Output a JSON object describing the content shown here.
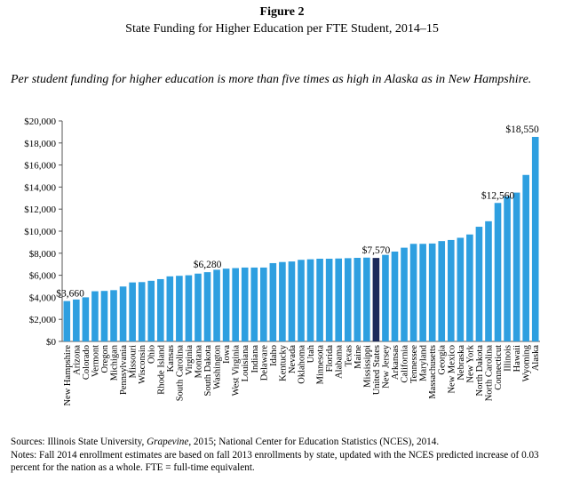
{
  "figure": {
    "label": "Figure 2",
    "title": "State Funding for Higher Education per FTE Student, 2014–15",
    "subtitle": "Per student funding for higher education is more than five times as high in Alaska as in New Hampshire."
  },
  "footer": {
    "sources_prefix": "Sources: Illinois State University, ",
    "sources_italic": "Grapevine",
    "sources_suffix": ", 2015; National Center for Education Statistics (NCES), 2014.",
    "notes": "Notes: Fall 2014 enrollment estimates are based on fall 2013 enrollments by state, updated with the NCES predicted increase of 0.03 percent for the nation as a whole. FTE = full-time equivalent."
  },
  "chart_data": {
    "type": "bar",
    "title": "State Funding for Higher Education per FTE Student, 2014–15",
    "xlabel": "",
    "ylabel": "",
    "ylim": [
      0,
      20000
    ],
    "yticks": [
      "$0",
      "$2,000",
      "$4,000",
      "$6,000",
      "$8,000",
      "$10,000",
      "$12,000",
      "$14,000",
      "$16,000",
      "$18,000",
      "$20,000"
    ],
    "grid": false,
    "colors": {
      "bar": "#2e9fe0",
      "highlight": "#1a2a5c"
    },
    "highlight_category": "United States",
    "categories": [
      "New Hampshire",
      "Arizona",
      "Colorado",
      "Vermont",
      "Oregon",
      "Michigan",
      "Pennsylvania",
      "Missouri",
      "Wisconsin",
      "Ohio",
      "Rhode Island",
      "Kansas",
      "South Carolina",
      "Virginia",
      "Montana",
      "South Dakota",
      "Washington",
      "Iowa",
      "West Virginia",
      "Louisiana",
      "Indiana",
      "Delaware",
      "Idaho",
      "Kentucky",
      "Nevada",
      "Oklahoma",
      "Utah",
      "Minnesota",
      "Florida",
      "Alabama",
      "Texas",
      "Maine",
      "Mississippi",
      "United States",
      "New Jersey",
      "Arkansas",
      "California",
      "Tennessee",
      "Maryland",
      "Massachusetts",
      "Georgia",
      "New Mexico",
      "Nebraska",
      "New York",
      "North Dakota",
      "North Carolina",
      "Connecticut",
      "Illinois",
      "Hawaii",
      "Wyoming",
      "Alaska"
    ],
    "values": [
      3660,
      3800,
      4000,
      4550,
      4580,
      4650,
      4980,
      5350,
      5380,
      5500,
      5650,
      5900,
      5950,
      6000,
      6150,
      6280,
      6500,
      6600,
      6650,
      6700,
      6700,
      6700,
      7100,
      7200,
      7250,
      7400,
      7450,
      7500,
      7500,
      7520,
      7550,
      7580,
      7600,
      7570,
      7850,
      8150,
      8500,
      8850,
      8850,
      8880,
      9100,
      9200,
      9400,
      9700,
      10400,
      10900,
      12560,
      13150,
      13500,
      15100,
      18550
    ],
    "data_labels": [
      {
        "category": "New Hampshire",
        "text": "$3,660"
      },
      {
        "category": "South Dakota",
        "text": "$6,280"
      },
      {
        "category": "United States",
        "text": "$7,570"
      },
      {
        "category": "Connecticut",
        "text": "$12,560"
      },
      {
        "category": "Alaska",
        "text": "$18,550"
      }
    ]
  }
}
